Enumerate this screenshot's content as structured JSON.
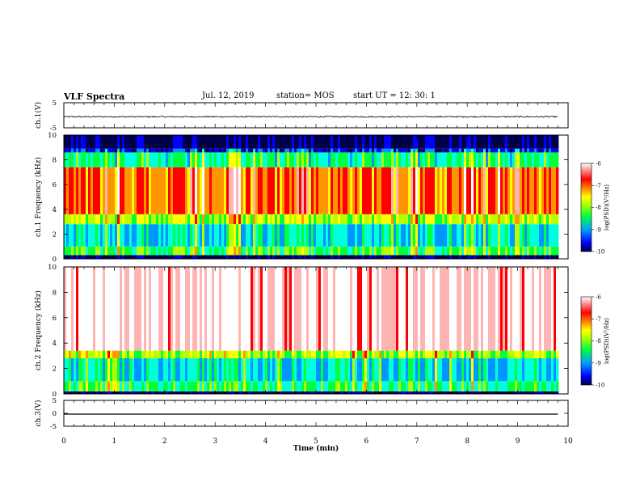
{
  "header": {
    "title": "VLF Spectra",
    "date": "Jul. 12, 2019",
    "station": "station= MOS",
    "start": "start UT = 12: 30: 1"
  },
  "colors": {
    "spectrogram": [
      "#00004a",
      "#0000ff",
      "#0096ff",
      "#00ffdc",
      "#00ff3c",
      "#b4ff00",
      "#ffff00",
      "#ff9600",
      "#ff0000",
      "#ffb4b4",
      "#ffffff"
    ],
    "trace": "#000000"
  },
  "chart_data": [
    {
      "type": "line",
      "name": "ch1-waveform",
      "ylabel": "ch.1(V)",
      "ylim": [
        -5,
        5
      ],
      "yticks": [
        "5",
        "-5"
      ],
      "level": -0.6,
      "noise": 0.25,
      "xlim": [
        0,
        10
      ],
      "data_end_min": 9.8
    },
    {
      "type": "heatmap",
      "name": "ch1-spectrogram",
      "ylabel": "ch.1 Frequency (kHz)",
      "ylim": [
        0,
        10
      ],
      "yticks": [
        "0",
        "2",
        "4",
        "6",
        "8",
        "10"
      ],
      "xlim": [
        0,
        10
      ],
      "data_end_min": 9.8,
      "colorbar": {
        "label": "log(PSD)(V²/Hz)",
        "range": [
          -10,
          -6
        ],
        "ticks": [
          "-6",
          "-7",
          "-8",
          "-9",
          "-10"
        ]
      },
      "profile": [
        {
          "f_khz": [
            0.0,
            0.3
          ],
          "log_psd": -10
        },
        {
          "f_khz": [
            0.3,
            1.0
          ],
          "log_psd": -8.4
        },
        {
          "f_khz": [
            1.0,
            2.8
          ],
          "log_psd": -8.9
        },
        {
          "f_khz": [
            2.8,
            3.6
          ],
          "log_psd": -8.0
        },
        {
          "f_khz": [
            3.6,
            7.4
          ],
          "log_psd": -7.1
        },
        {
          "f_khz": [
            7.4,
            8.6
          ],
          "log_psd": -8.6
        },
        {
          "f_khz": [
            8.6,
            8.9
          ],
          "log_psd": -9.6
        },
        {
          "f_khz": [
            8.9,
            10.0
          ],
          "log_psd": -10
        }
      ]
    },
    {
      "type": "heatmap",
      "name": "ch2-spectrogram",
      "ylabel": "ch.2 Frequency (kHz)",
      "ylim": [
        0,
        10
      ],
      "yticks": [
        "0",
        "2",
        "4",
        "6",
        "8",
        "10"
      ],
      "xlim": [
        0,
        10
      ],
      "data_end_min": 9.8,
      "colorbar": {
        "label": "log(PSD)(V²/Hz)",
        "range": [
          -10,
          -6
        ],
        "ticks": [
          "-6",
          "-7",
          "-8",
          "-9",
          "-10"
        ]
      },
      "profile": [
        {
          "f_khz": [
            0.0,
            0.2
          ],
          "log_psd": -10
        },
        {
          "f_khz": [
            0.2,
            1.0
          ],
          "log_psd": -8.5
        },
        {
          "f_khz": [
            1.0,
            2.8
          ],
          "log_psd": -8.9
        },
        {
          "f_khz": [
            2.8,
            3.4
          ],
          "log_psd": -8.0
        },
        {
          "f_khz": [
            3.4,
            10.0
          ],
          "log_psd": -6.2
        }
      ]
    },
    {
      "type": "line",
      "name": "ch3-waveform",
      "ylabel": "ch.3(V)",
      "ylim": [
        -5,
        5
      ],
      "yticks": [
        "5",
        "0",
        "-5"
      ],
      "level": -0.3,
      "noise": 0.0,
      "xlim": [
        0,
        10
      ],
      "data_end_min": 9.8,
      "xlabel": "Time (min)",
      "xticks": [
        "0",
        "1",
        "2",
        "3",
        "4",
        "5",
        "6",
        "7",
        "8",
        "9",
        "10"
      ]
    }
  ]
}
